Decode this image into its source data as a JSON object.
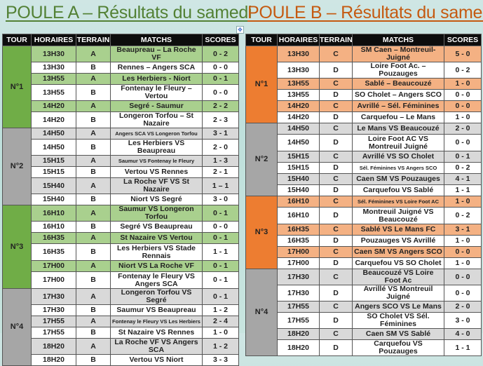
{
  "colors": {
    "green_dark": "#70ad47",
    "green_light": "#a9d08e",
    "orange_dark": "#ed7d31",
    "orange_light": "#f4b183",
    "gray_dark": "#a6a6a6",
    "gray_light": "#d9d9d9",
    "header": "#0d0d0d"
  },
  "headers": [
    "TOUR",
    "HORAIRES",
    "TERRAIN",
    "MATCHS",
    "SCORES"
  ],
  "poules": [
    {
      "title": "POULE A – Résultats du samedi",
      "accent": "green",
      "tours": [
        {
          "label": "N°1",
          "rows": [
            [
              "13H30",
              "A",
              "Beaupreau – La Roche VF",
              "0 - 2"
            ],
            [
              "13H30",
              "B",
              "Rennes – Angers SCA",
              "0 - 0"
            ],
            [
              "13H55",
              "A",
              "Les Herbiers - Niort",
              "0 - 1"
            ],
            [
              "13H55",
              "B",
              "Fontenay le Fleury – Vertou",
              "0 - 0"
            ],
            [
              "14H20",
              "A",
              "Segré - Saumur",
              "2 - 2"
            ],
            [
              "14H20",
              "B",
              "Longeron Torfou – St Nazaire",
              "2 - 3"
            ]
          ]
        },
        {
          "label": "N°2",
          "rows": [
            [
              "14H50",
              "A",
              "Angers SCA  VS  Longeron Torfou",
              "3 - 1"
            ],
            [
              "14H50",
              "B",
              "Les Herbiers  VS  Beaupreau",
              "2 - 0"
            ],
            [
              "15H15",
              "A",
              "Saumur  VS  Fontenay le Fleury",
              "1 - 3"
            ],
            [
              "15H15",
              "B",
              "Vertou  VS  Rennes",
              "2 - 1"
            ],
            [
              "15H40",
              "A",
              "La Roche VF  VS  St Nazaire",
              "1 – 1"
            ],
            [
              "15H40",
              "B",
              "Niort  VS  Segré",
              "3 - 0"
            ]
          ]
        },
        {
          "label": "N°3",
          "rows": [
            [
              "16H10",
              "A",
              "Saumur  VS  Longeron Torfou",
              "0 - 1"
            ],
            [
              "16H10",
              "B",
              "Segré  VS  Beaupreau",
              "0 - 0"
            ],
            [
              "16H35",
              "A",
              "St Nazaire  VS  Vertou",
              "0 - 1"
            ],
            [
              "16H35",
              "B",
              "Les Herbiers  VS  Stade Rennais",
              "1 - 1"
            ],
            [
              "17H00",
              "A",
              "Niort  VS  La Roche VF",
              "0 - 1"
            ],
            [
              "17H00",
              "B",
              "Fontenay le Fleury  VS  Angers SCA",
              "0 - 1"
            ]
          ]
        },
        {
          "label": "N°4",
          "rows": [
            [
              "17H30",
              "A",
              "Longeron Torfou  VS  Segré",
              "0 - 1"
            ],
            [
              "17H30",
              "B",
              "Saumur  VS  Beaupreau",
              "1 - 2"
            ],
            [
              "17H55",
              "A",
              "Fontenay le Fleury  VS  Les Herbiers",
              "2 - 4"
            ],
            [
              "17H55",
              "B",
              "St Nazaire  VS  Rennes",
              "1 - 0"
            ],
            [
              "18H20",
              "A",
              "La Roche VF  VS  Angers SCA",
              "1 - 2"
            ],
            [
              "18H20",
              "B",
              "Vertou  VS  Niort",
              "3 - 3"
            ]
          ]
        }
      ]
    },
    {
      "title": "POULE B – Résultats du samedi",
      "accent": "orange",
      "tours": [
        {
          "label": "N°1",
          "rows": [
            [
              "13H30",
              "C",
              "SM Caen – Montreuil-Juigné",
              "5 - 0"
            ],
            [
              "13H30",
              "D",
              "Loire Foot Ac. – Pouzauges",
              "0 - 2"
            ],
            [
              "13H55",
              "C",
              "Sablé – Beaucouzé",
              "1 - 0"
            ],
            [
              "13H55",
              "D",
              "SO Cholet – Angers SCO",
              "0 - 0"
            ],
            [
              "14H20",
              "C",
              "Avrillé – Sél. Féminines",
              "0 - 0"
            ],
            [
              "14H20",
              "D",
              "Carquefou – Le Mans",
              "1 - 0"
            ]
          ]
        },
        {
          "label": "N°2",
          "rows": [
            [
              "14H50",
              "C",
              "Le Mans  VS  Beaucouzé",
              "2 - 0"
            ],
            [
              "14H50",
              "D",
              "Loire Foot AC  VS  Montreuil Juigné",
              "0 - 0"
            ],
            [
              "15H15",
              "C",
              "Avrillé  VS  SO Cholet",
              "0 - 1"
            ],
            [
              "15H15",
              "D",
              "Sél. Féminines  VS  Angers SCO",
              "0 - 2"
            ],
            [
              "15H40",
              "C",
              "Caen SM  VS  Pouzauges",
              "4 - 1"
            ],
            [
              "15H40",
              "D",
              "Carquefou  VS  Sablé",
              "1 - 1"
            ]
          ]
        },
        {
          "label": "N°3",
          "rows": [
            [
              "16H10",
              "C",
              "Sél. Féminines  VS  Loire Foot AC",
              "1 - 0"
            ],
            [
              "16H10",
              "D",
              "Montreuil Juigné  VS  Beaucouzé",
              "0 - 2"
            ],
            [
              "16H35",
              "C",
              "Sablé  VS  Le Mans FC",
              "3 - 1"
            ],
            [
              "16H35",
              "D",
              "Pouzauges  VS  Avrillé",
              "1 - 0"
            ],
            [
              "17H00",
              "C",
              "Caen SM  VS  Angers SCO",
              "0 - 0"
            ],
            [
              "17H00",
              "D",
              "Carquefou  VS  SO Cholet",
              "1 - 0"
            ]
          ]
        },
        {
          "label": "N°4",
          "rows": [
            [
              "17H30",
              "C",
              "Beaucouzé  VS  Loire Foot Ac",
              "0 - 0"
            ],
            [
              "17H30",
              "D",
              "Avrillé  VS  Montreuil Juigné",
              "0 - 0"
            ],
            [
              "17H55",
              "C",
              "Angers SCO  VS  Le Mans",
              "2 - 0"
            ],
            [
              "17H55",
              "D",
              "SO Cholet  VS  Sél. Féminines",
              "3 - 0"
            ],
            [
              "18H20",
              "C",
              "Caen SM  VS  Sablé",
              "4 - 0"
            ],
            [
              "18H20",
              "D",
              "Carquefou  VS  Pouzauges",
              "1 - 1"
            ]
          ]
        }
      ]
    }
  ]
}
